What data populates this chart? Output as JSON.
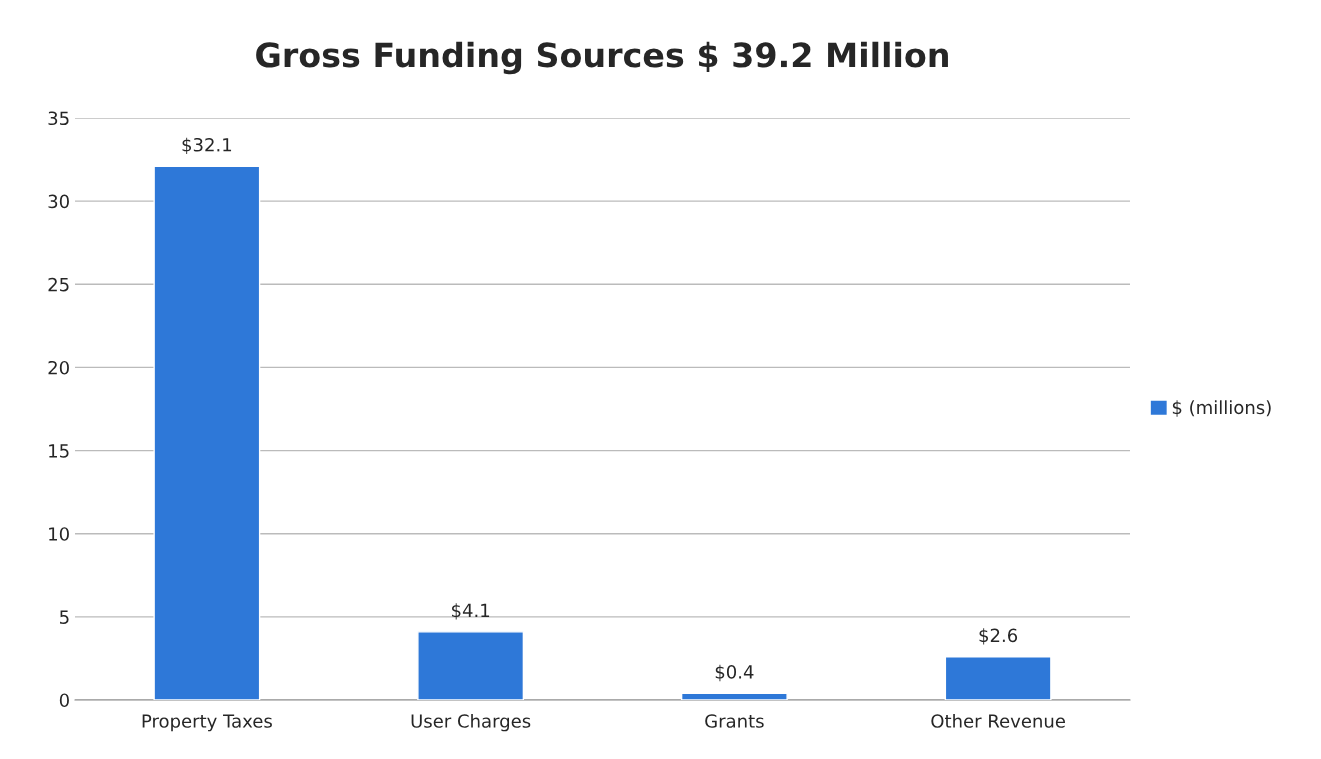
{
  "chart_data": {
    "type": "bar",
    "title": "Gross Funding Sources $ 39.2 Million",
    "categories": [
      "Property Taxes",
      "User Charges",
      "Grants",
      "Other Revenue"
    ],
    "series": [
      {
        "name": "$ (millions)",
        "color": "#2e78d8",
        "values": [
          32.1,
          4.1,
          0.4,
          2.6
        ],
        "value_labels": [
          "$32.1",
          "$4.1",
          "$0.4",
          "$2.6"
        ]
      }
    ],
    "ylim": [
      0,
      35
    ],
    "yticks": [
      0,
      5,
      10,
      15,
      20,
      25,
      30,
      35
    ],
    "grid": "y",
    "legend": "right"
  }
}
